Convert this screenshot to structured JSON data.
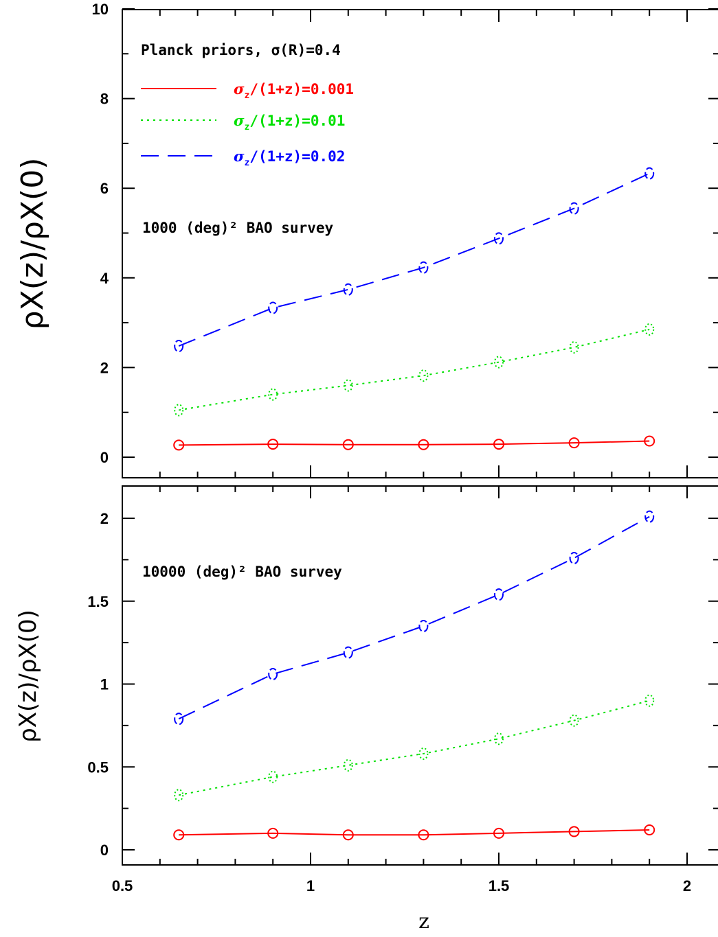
{
  "chart_data": [
    {
      "type": "line",
      "panel": "top",
      "annotation_top": "Planck priors, σ(R)=0.4",
      "annotation_survey": "1000 (deg)² BAO survey",
      "ylabel": "ρX(z)/ρX(0)",
      "xlabel": "",
      "xlim": [
        0.5,
        2.1
      ],
      "ylim": [
        -0.45,
        10
      ],
      "yticks": [
        0,
        2,
        4,
        6,
        8,
        10
      ],
      "x": [
        0.65,
        0.9,
        1.1,
        1.3,
        1.5,
        1.7,
        1.9
      ],
      "series": [
        {
          "name": "σz/(1+z)=0.001",
          "color": "#ff0000",
          "style": "solid",
          "marker": "circle",
          "values": [
            0.27,
            0.29,
            0.28,
            0.28,
            0.29,
            0.32,
            0.36
          ]
        },
        {
          "name": "σz/(1+z)=0.01",
          "color": "#00e000",
          "style": "dotted",
          "marker": "ellipse",
          "values": [
            1.05,
            1.4,
            1.6,
            1.82,
            2.12,
            2.45,
            2.85
          ]
        },
        {
          "name": "σz/(1+z)=0.02",
          "color": "#0000ff",
          "style": "dashed",
          "marker": "ellipse",
          "values": [
            2.48,
            3.33,
            3.74,
            4.23,
            4.88,
            5.55,
            6.33
          ]
        }
      ]
    },
    {
      "type": "line",
      "panel": "bottom",
      "annotation_survey": "10000 (deg)² BAO survey",
      "ylabel": "ρX(z)/ρX(0)",
      "xlabel": "z",
      "xlim": [
        0.5,
        2.1
      ],
      "xticks": [
        0.5,
        1,
        1.5,
        2
      ],
      "xticklabels": [
        "0.5",
        "1",
        "1.5",
        "2"
      ],
      "ylim": [
        -0.1,
        2.2
      ],
      "yticks": [
        0,
        0.5,
        1,
        1.5,
        2
      ],
      "yticklabels": [
        "0",
        "0.5",
        "1",
        "1.5",
        "2"
      ],
      "x": [
        0.65,
        0.9,
        1.1,
        1.3,
        1.5,
        1.7,
        1.9
      ],
      "series": [
        {
          "name": "σz/(1+z)=0.001",
          "color": "#ff0000",
          "style": "solid",
          "marker": "circle",
          "values": [
            0.09,
            0.1,
            0.09,
            0.09,
            0.1,
            0.11,
            0.12
          ]
        },
        {
          "name": "σz/(1+z)=0.01",
          "color": "#00e000",
          "style": "dotted",
          "marker": "ellipse",
          "values": [
            0.33,
            0.44,
            0.51,
            0.58,
            0.67,
            0.78,
            0.9
          ]
        },
        {
          "name": "σz/(1+z)=0.02",
          "color": "#0000ff",
          "style": "dashed",
          "marker": "ellipse",
          "values": [
            0.79,
            1.06,
            1.19,
            1.35,
            1.54,
            1.76,
            2.01
          ]
        }
      ]
    }
  ],
  "legend": [
    {
      "sym": "σ",
      "sub": "z",
      "rest": "/(1+z)=0.001",
      "color": "#ff0000",
      "style": "solid"
    },
    {
      "sym": "σ",
      "sub": "z",
      "rest": "/(1+z)=0.01",
      "color": "#00e000",
      "style": "dotted"
    },
    {
      "sym": "σ",
      "sub": "z",
      "rest": "/(1+z)=0.02",
      "color": "#0000ff",
      "style": "dashed"
    }
  ]
}
